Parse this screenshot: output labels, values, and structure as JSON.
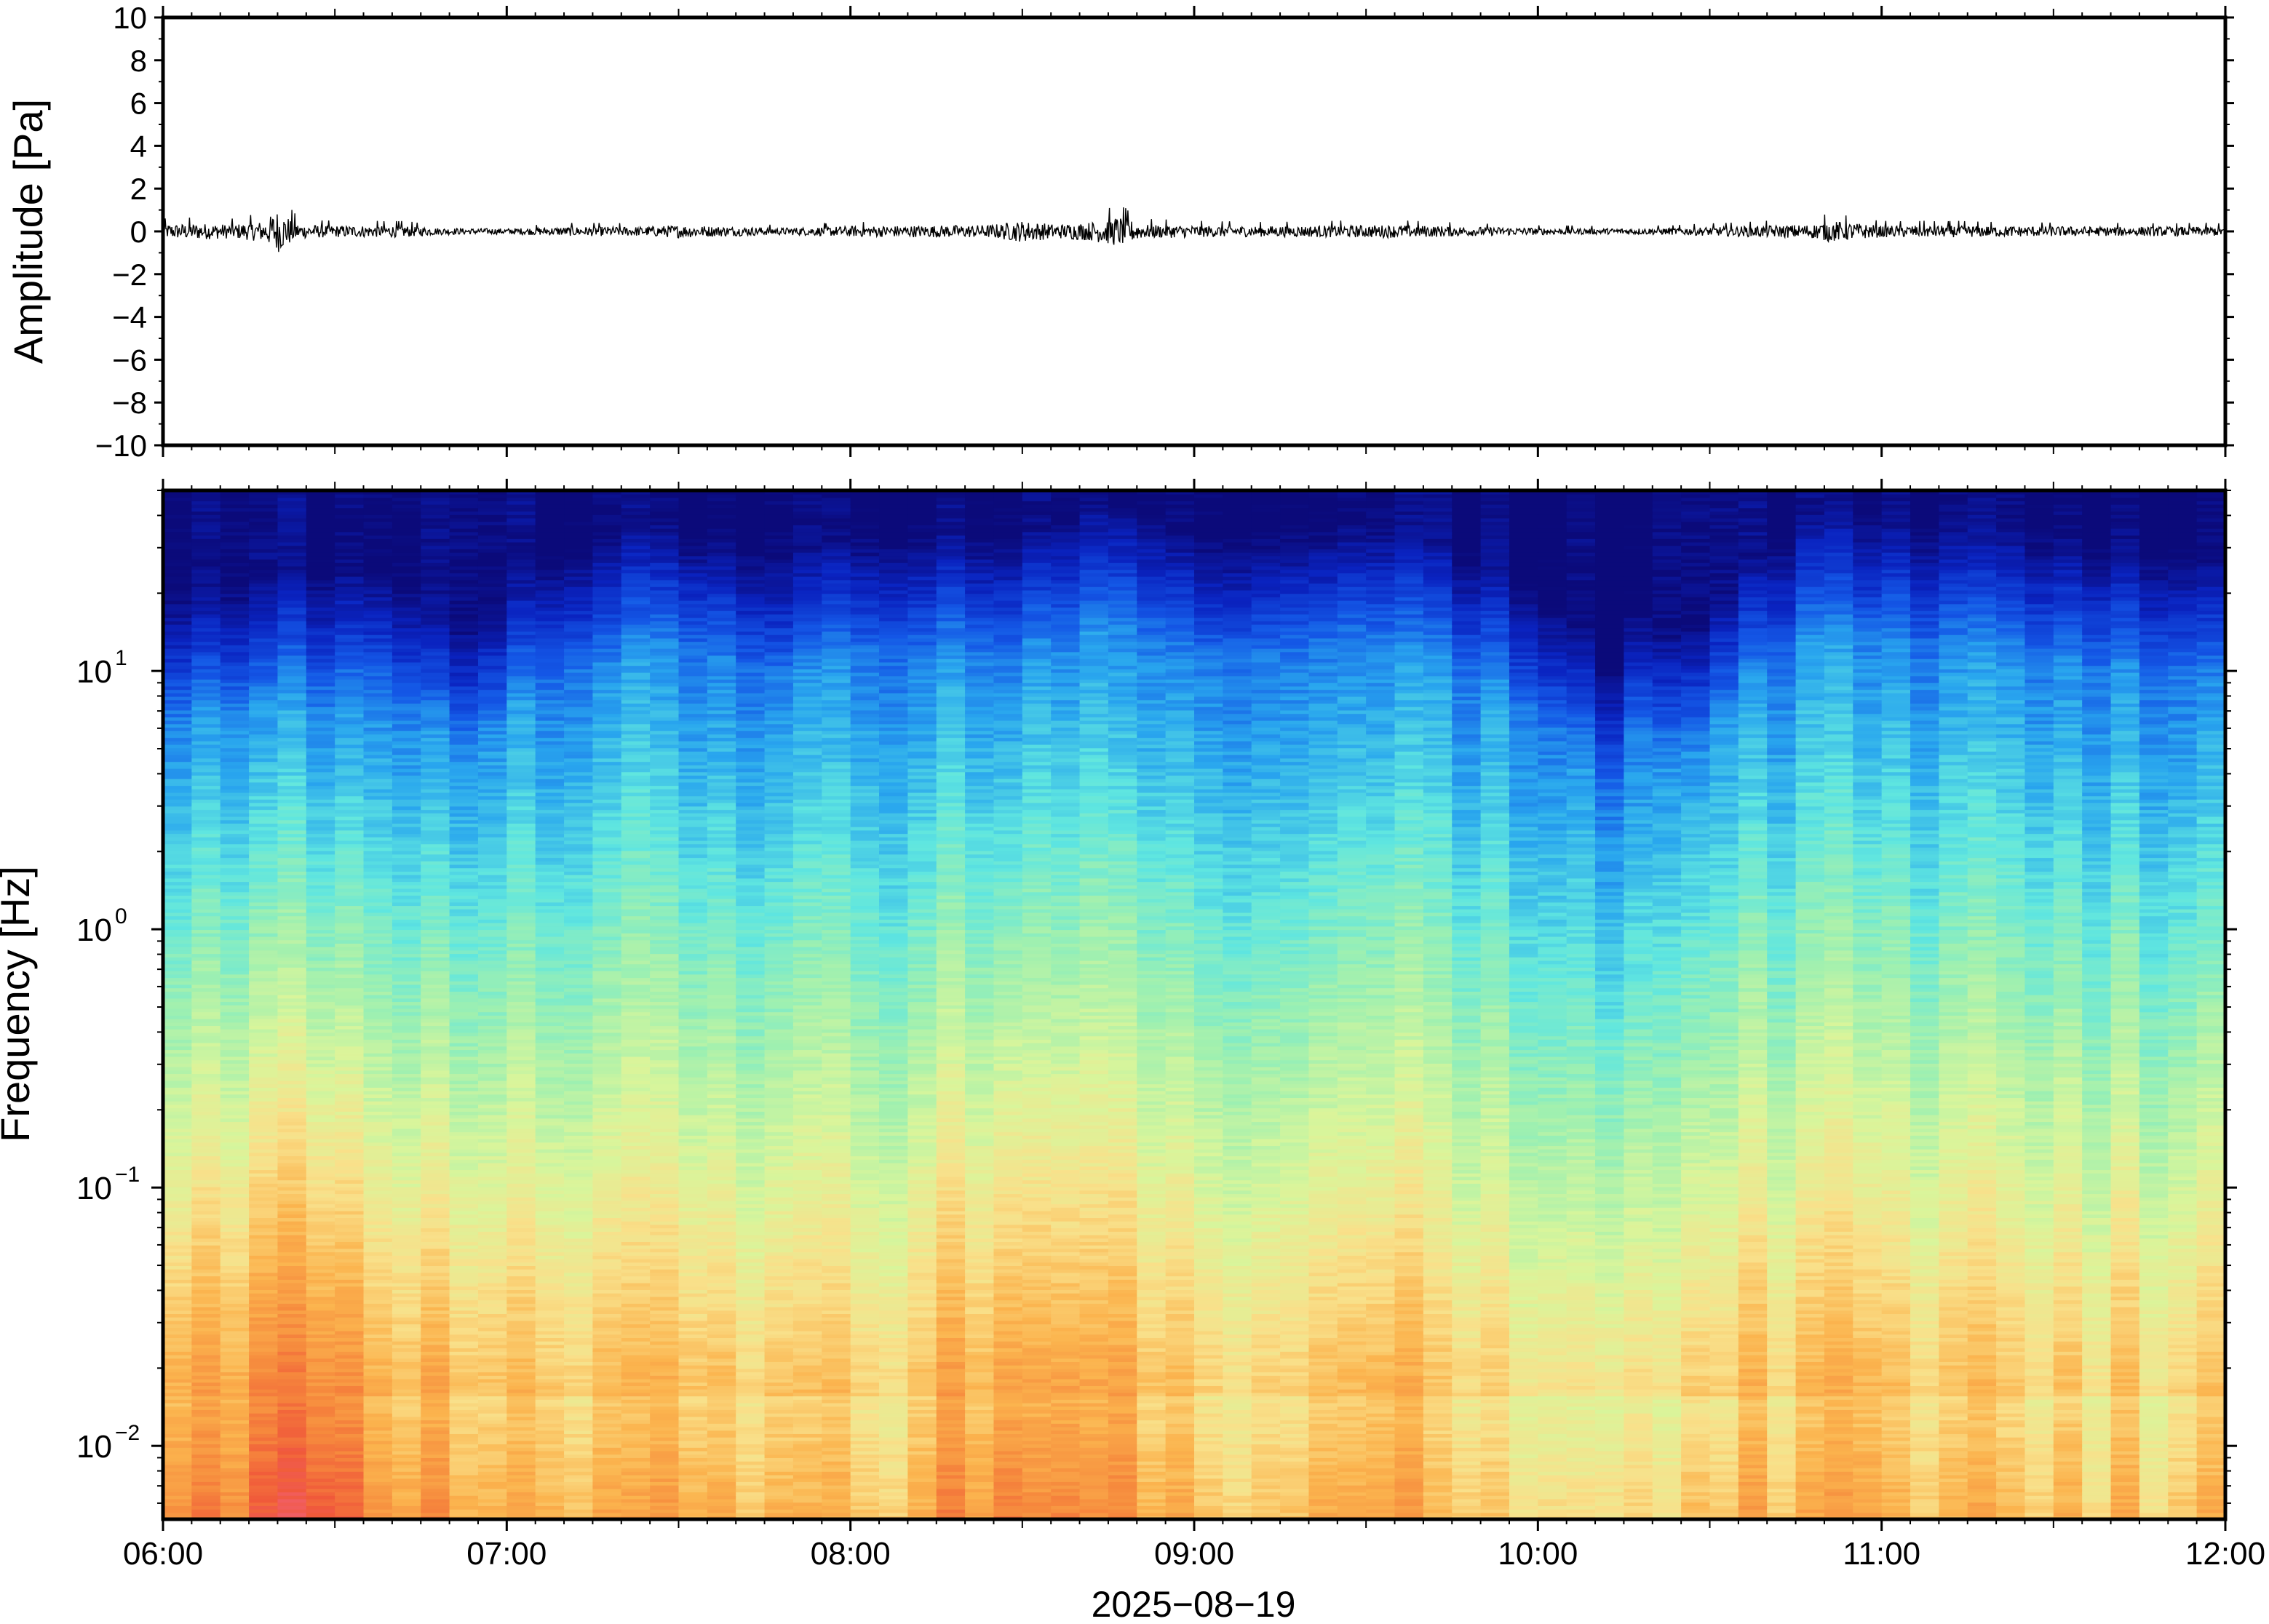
{
  "chart_data": [
    {
      "type": "line",
      "title": "",
      "ylabel": "Amplitude [Pa]",
      "ylim": [
        -10,
        10
      ],
      "yticks": [
        10,
        8,
        6,
        4,
        2,
        0,
        -2,
        -4,
        -6,
        -8,
        -10
      ],
      "ytick_labels": [
        "10",
        "8",
        "6",
        "4",
        "2",
        "0",
        "−2",
        "−4",
        "−6",
        "−8",
        "−10"
      ],
      "xlim": [
        "06:00",
        "12:00"
      ],
      "series": [
        {
          "color": "#000000",
          "x_hours": [
            6.0,
            6.1,
            6.2,
            6.3,
            6.33,
            6.36,
            6.4,
            6.5,
            6.6,
            6.7,
            6.8,
            6.9,
            7.0,
            7.2,
            7.4,
            7.5,
            7.6,
            7.8,
            8.0,
            8.2,
            8.4,
            8.5,
            8.6,
            8.7,
            8.78,
            8.85,
            9.0,
            9.2,
            9.4,
            9.6,
            9.8,
            10.0,
            10.2,
            10.4,
            10.6,
            10.8,
            10.85,
            11.0,
            11.2,
            11.4,
            11.6,
            11.8,
            12.0
          ],
          "envelope": [
            0.6,
            0.7,
            0.6,
            0.9,
            1.9,
            1.3,
            0.6,
            0.5,
            0.5,
            0.5,
            0.3,
            0.25,
            0.25,
            0.4,
            0.4,
            0.55,
            0.45,
            0.3,
            0.45,
            0.5,
            0.55,
            0.9,
            0.6,
            0.8,
            1.3,
            0.6,
            0.5,
            0.45,
            0.5,
            0.55,
            0.4,
            0.3,
            0.25,
            0.3,
            0.45,
            0.6,
            0.9,
            0.5,
            0.5,
            0.45,
            0.4,
            0.4,
            0.4
          ]
        }
      ]
    },
    {
      "type": "heatmap",
      "title": "",
      "xlabel": "2025−08−19",
      "ylabel": "Frequency [Hz]",
      "xlim": [
        "06:00",
        "12:00"
      ],
      "xticks": [
        "06:00",
        "07:00",
        "08:00",
        "09:00",
        "10:00",
        "11:00",
        "12:00"
      ],
      "ylim": [
        0.0052,
        50
      ],
      "yscale": "log",
      "ytick_labels": [
        {
          "value": 10,
          "base": "10",
          "exp": "1"
        },
        {
          "value": 1,
          "base": "10",
          "exp": "0"
        },
        {
          "value": 0.1,
          "base": "10",
          "exp": "−1"
        },
        {
          "value": 0.01,
          "base": "10",
          "exp": "−2"
        }
      ],
      "colormap": [
        "#fadadd",
        "#f2617a",
        "#f0593a",
        "#f68a3d",
        "#fbb44e",
        "#f9e08a",
        "#d9f59b",
        "#9ff0b0",
        "#5fe6e0",
        "#29a6ee",
        "#1457e6",
        "#0a23c0",
        "#0b0a7a"
      ],
      "profile_comment_free": true,
      "time_hours": [
        6.0,
        6.3,
        6.35,
        6.6,
        6.9,
        7.1,
        7.5,
        7.8,
        8.0,
        8.5,
        8.78,
        9.0,
        9.5,
        9.8,
        10.2,
        10.3,
        10.4,
        10.5,
        10.8,
        11.2,
        11.6,
        12.0
      ],
      "noise_top_hz": [
        14,
        16,
        18,
        18,
        10,
        20,
        28,
        20,
        25,
        25,
        33,
        24,
        28,
        22,
        8,
        14,
        9,
        12,
        30,
        27,
        24,
        20
      ],
      "low_freq_power": [
        0.72,
        0.8,
        0.92,
        0.78,
        0.6,
        0.6,
        0.65,
        0.62,
        0.6,
        0.75,
        0.72,
        0.6,
        0.66,
        0.58,
        0.5,
        0.55,
        0.5,
        0.56,
        0.68,
        0.62,
        0.6,
        0.58
      ]
    }
  ]
}
